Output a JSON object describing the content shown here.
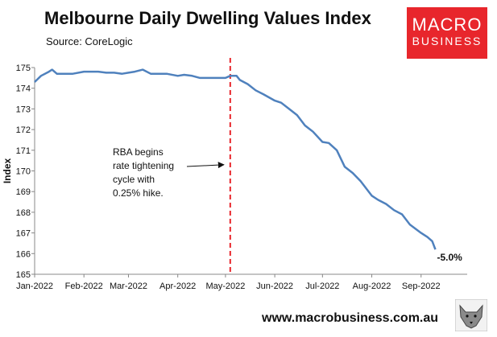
{
  "header": {
    "title": "Melbourne Daily Dwelling Values Index",
    "subtitle": "Source: CoreLogic"
  },
  "logo": {
    "line1": "MACRO",
    "line2": "BUSINESS",
    "color": "#e8262c"
  },
  "footer": {
    "url": "www.macrobusiness.com.au"
  },
  "chart_data": {
    "type": "line",
    "title": "Melbourne Daily Dwelling Values Index",
    "subtitle": "Source: CoreLogic",
    "ylabel": "Index",
    "xlabel": "",
    "ylim": [
      165,
      175
    ],
    "xlim": [
      "2022-01-01",
      "2022-09-30"
    ],
    "yticks": [
      165,
      166,
      167,
      168,
      169,
      170,
      171,
      172,
      173,
      174,
      175
    ],
    "xticks": [
      {
        "date": "2022-01-01",
        "label": "Jan-2022"
      },
      {
        "date": "2022-02-01",
        "label": "Feb-2022"
      },
      {
        "date": "2022-03-01",
        "label": "Mar-2022"
      },
      {
        "date": "2022-04-01",
        "label": "Apr-2022"
      },
      {
        "date": "2022-05-01",
        "label": "May-2022"
      },
      {
        "date": "2022-06-01",
        "label": "Jun-2022"
      },
      {
        "date": "2022-07-01",
        "label": "Jul-2022"
      },
      {
        "date": "2022-08-01",
        "label": "Aug-2022"
      },
      {
        "date": "2022-09-01",
        "label": "Sep-2022"
      }
    ],
    "grid": false,
    "series": [
      {
        "color": "#4f81bd",
        "x": [
          "2022-01-01",
          "2022-01-05",
          "2022-01-10",
          "2022-01-12",
          "2022-01-15",
          "2022-01-20",
          "2022-01-25",
          "2022-02-01",
          "2022-02-05",
          "2022-02-10",
          "2022-02-15",
          "2022-02-20",
          "2022-02-25",
          "2022-03-01",
          "2022-03-05",
          "2022-03-10",
          "2022-03-15",
          "2022-03-20",
          "2022-03-25",
          "2022-04-01",
          "2022-04-05",
          "2022-04-10",
          "2022-04-15",
          "2022-04-20",
          "2022-04-25",
          "2022-05-01",
          "2022-05-04",
          "2022-05-08",
          "2022-05-10",
          "2022-05-15",
          "2022-05-20",
          "2022-05-25",
          "2022-06-01",
          "2022-06-05",
          "2022-06-10",
          "2022-06-15",
          "2022-06-20",
          "2022-06-25",
          "2022-07-01",
          "2022-07-05",
          "2022-07-10",
          "2022-07-15",
          "2022-07-20",
          "2022-07-25",
          "2022-08-01",
          "2022-08-05",
          "2022-08-10",
          "2022-08-15",
          "2022-08-20",
          "2022-08-25",
          "2022-09-01",
          "2022-09-05",
          "2022-09-08",
          "2022-09-10"
        ],
        "y": [
          174.3,
          174.6,
          174.8,
          174.9,
          174.7,
          174.7,
          174.7,
          174.8,
          174.8,
          174.8,
          174.75,
          174.75,
          174.7,
          174.75,
          174.8,
          174.9,
          174.7,
          174.7,
          174.7,
          174.6,
          174.65,
          174.6,
          174.5,
          174.5,
          174.5,
          174.5,
          174.6,
          174.6,
          174.4,
          174.2,
          173.9,
          173.7,
          173.4,
          173.3,
          173.0,
          172.7,
          172.2,
          171.9,
          171.4,
          171.35,
          171.0,
          170.2,
          169.9,
          169.5,
          168.8,
          168.6,
          168.4,
          168.1,
          167.9,
          167.4,
          167.0,
          166.8,
          166.6,
          166.2
        ]
      }
    ],
    "annotations": {
      "vline": {
        "date": "2022-05-04",
        "color": "#e8262c"
      },
      "note": {
        "lines": [
          "RBA begins",
          "rate tightening",
          "cycle with",
          "0.25% hike."
        ],
        "arrow_to_date": "2022-05-04",
        "arrow_to_value": 170.3
      },
      "end_label": "-5.0%"
    }
  }
}
